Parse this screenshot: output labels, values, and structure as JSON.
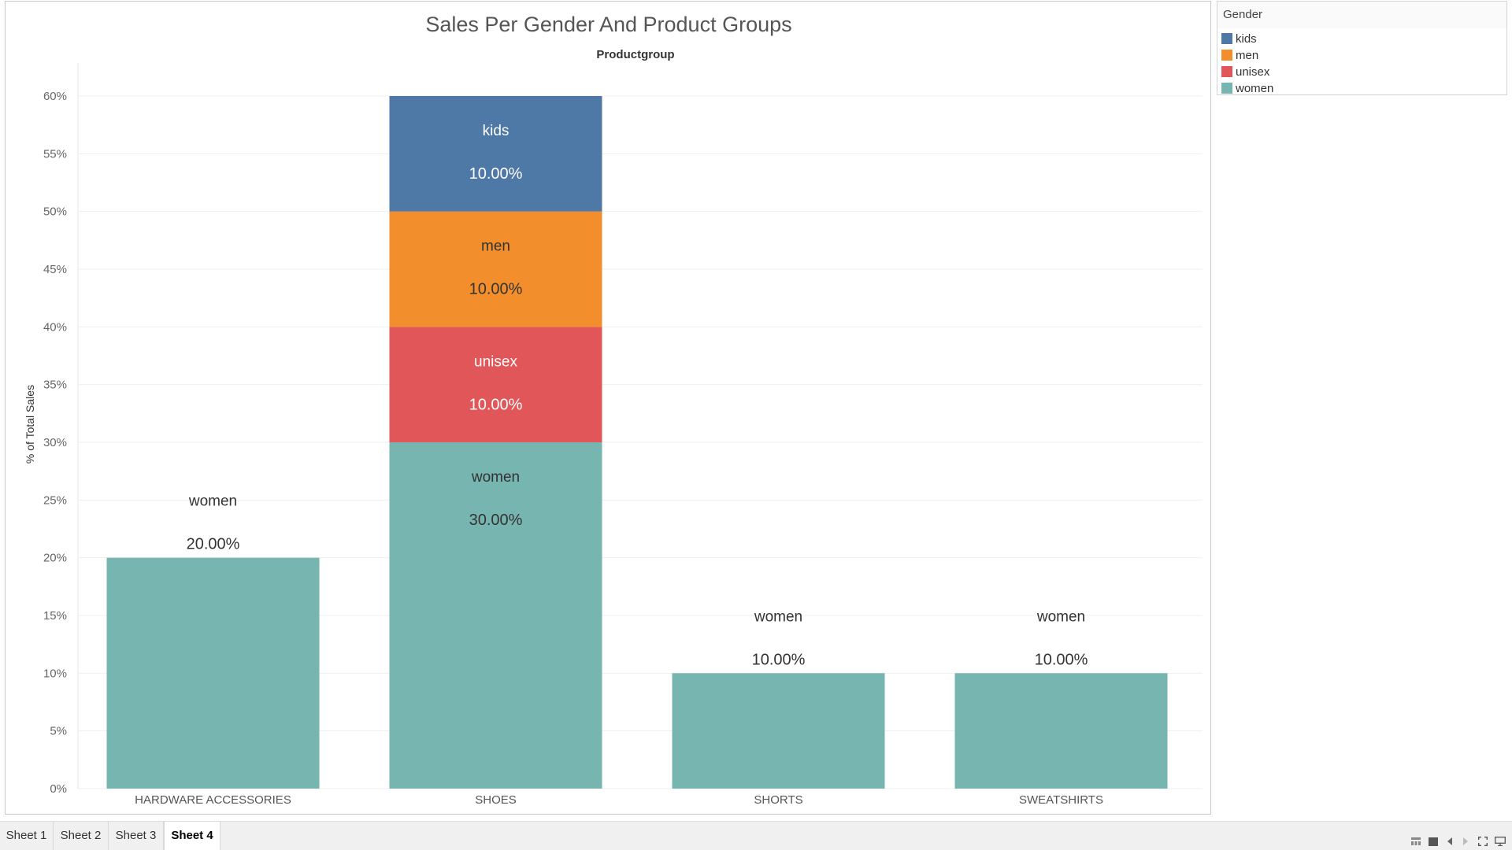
{
  "chart_data": {
    "type": "bar",
    "stacked": true,
    "title": "Sales Per Gender And Product Groups",
    "column_header": "Productgroup",
    "ylabel": "% of Total Sales",
    "ylim": [
      0,
      60
    ],
    "yticks": [
      "0%",
      "5%",
      "10%",
      "15%",
      "20%",
      "25%",
      "30%",
      "35%",
      "40%",
      "45%",
      "50%",
      "55%",
      "60%"
    ],
    "categories": [
      "HARDWARE ACCESSORIES",
      "SHOES",
      "SHORTS",
      "SWEATSHIRTS"
    ],
    "series": [
      {
        "name": "women",
        "color": "#76b5b0",
        "values": [
          20,
          30,
          10,
          10
        ],
        "labels": [
          "20.00%",
          "30.00%",
          "10.00%",
          "10.00%"
        ]
      },
      {
        "name": "unisex",
        "color": "#e15759",
        "values": [
          0,
          10,
          0,
          0
        ],
        "labels": [
          "",
          "10.00%",
          "",
          ""
        ]
      },
      {
        "name": "men",
        "color": "#f28e2b",
        "values": [
          0,
          10,
          0,
          0
        ],
        "labels": [
          "",
          "10.00%",
          "",
          ""
        ]
      },
      {
        "name": "kids",
        "color": "#4e79a7",
        "values": [
          0,
          10,
          0,
          0
        ],
        "labels": [
          "",
          "10.00%",
          "",
          ""
        ]
      }
    ],
    "grid": true
  },
  "legend": {
    "title": "Gender",
    "items": [
      {
        "label": "kids",
        "color": "#4e79a7"
      },
      {
        "label": "men",
        "color": "#f28e2b"
      },
      {
        "label": "unisex",
        "color": "#e15759"
      },
      {
        "label": "women",
        "color": "#76b5b0"
      }
    ]
  },
  "tabs": {
    "items": [
      {
        "label": "Sheet 1"
      },
      {
        "label": "Sheet 2"
      },
      {
        "label": "Sheet 3"
      },
      {
        "label": "Sheet 4"
      }
    ],
    "active": "Sheet 4"
  },
  "controls": [
    "show-filmstrip-icon",
    "show-tabs-icon",
    "previous-sheet-icon",
    "next-sheet-icon",
    "fullscreen-icon",
    "presentation-mode-icon"
  ]
}
